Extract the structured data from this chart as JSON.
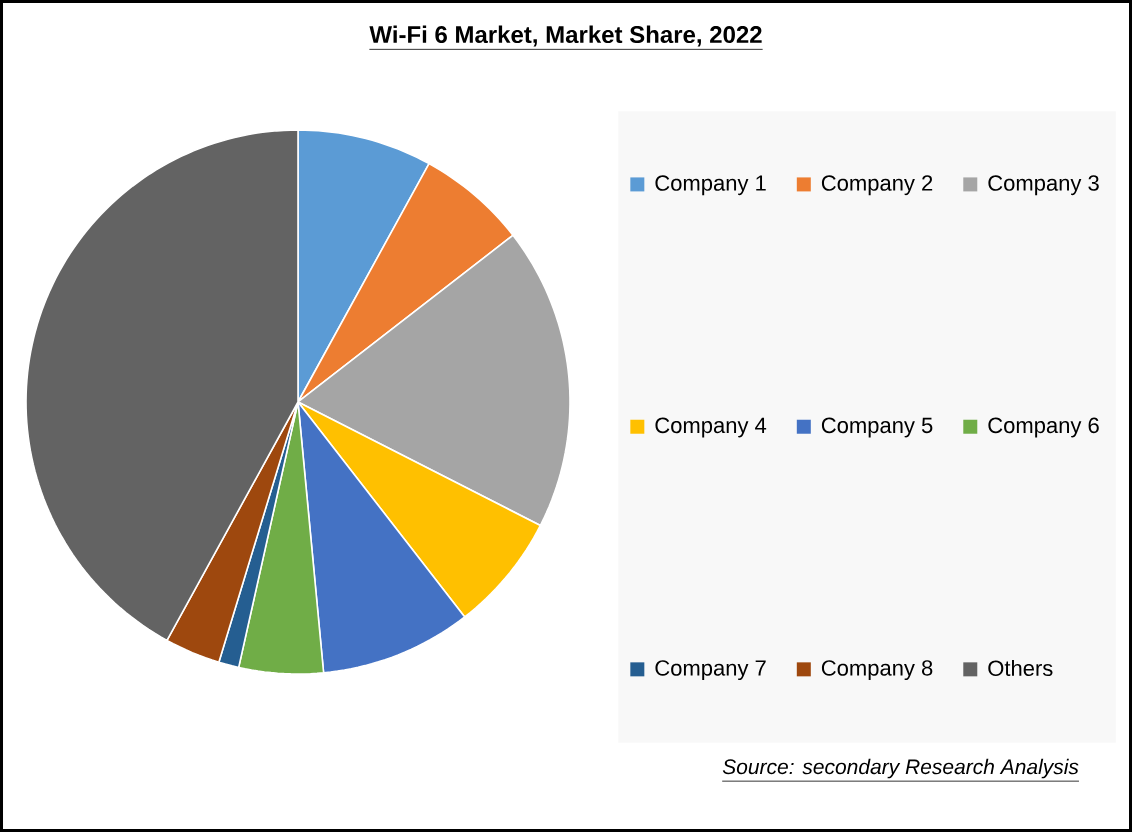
{
  "chart_data": {
    "type": "pie",
    "title": "Wi-Fi 6 Market, Market Share, 2022",
    "categories": [
      "Company 1",
      "Company 2",
      "Company 3",
      "Company 4",
      "Company 5",
      "Company 6",
      "Company 7",
      "Company 8",
      "Others"
    ],
    "values": [
      8,
      6.5,
      18,
      7,
      9,
      5,
      1.2,
      3.3,
      42
    ],
    "colors": [
      "#5b9bd5",
      "#ed7d31",
      "#a5a5a5",
      "#ffc000",
      "#4472c4",
      "#70ad47",
      "#255e91",
      "#9e480e",
      "#636363"
    ],
    "legend": "right",
    "annotations": [
      "Source: secondary Research Analysis"
    ]
  }
}
